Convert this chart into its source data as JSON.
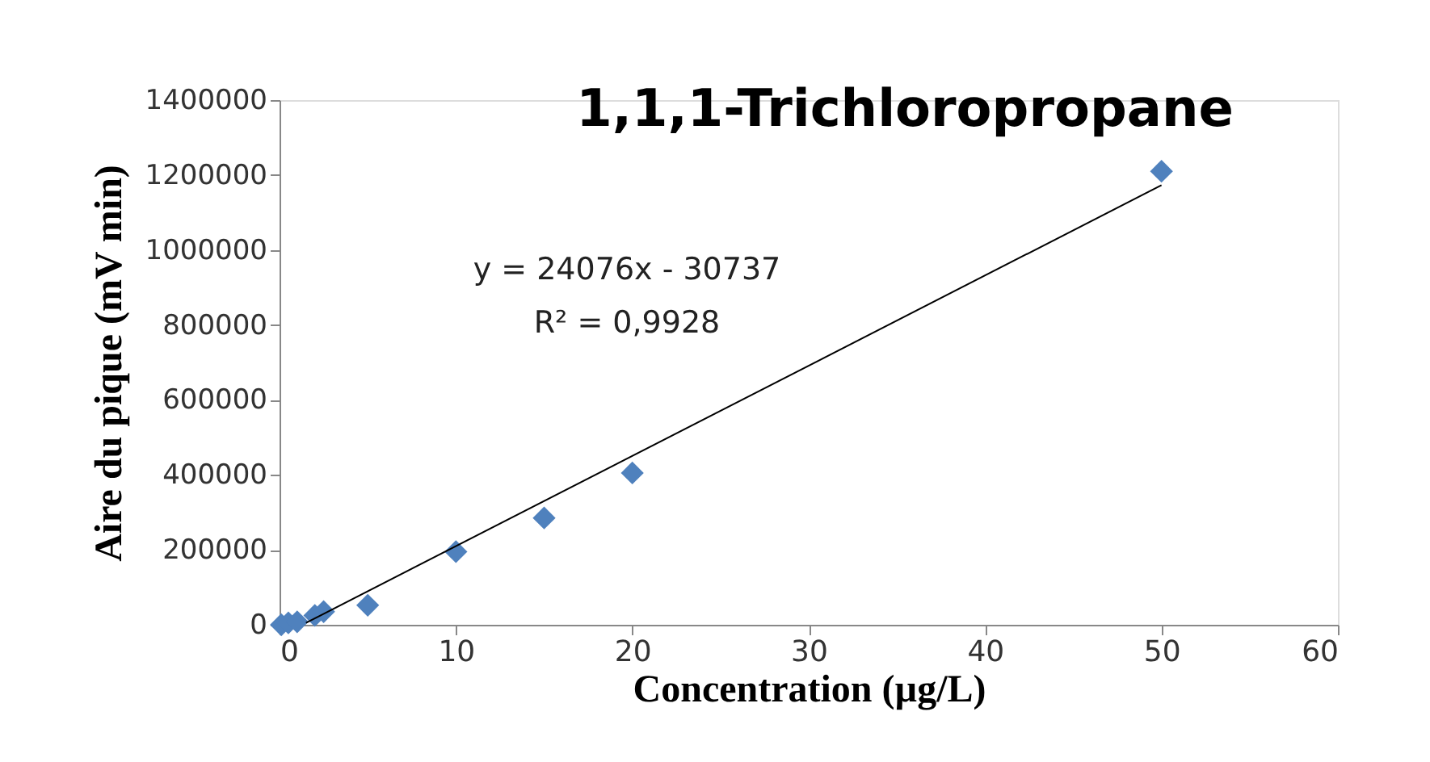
{
  "chart_data": {
    "type": "scatter",
    "title": "1,1,1-Trichloropropane",
    "xlabel": "Concentration (µg/L)",
    "ylabel": "Aire du pique (mV min)",
    "annotations": [
      "y = 24076x - 30737",
      "R² = 0,9928"
    ],
    "series": [
      {
        "color": "#4f81bd",
        "marker": "diamond",
        "x": [
          0.1,
          0.5,
          1,
          2,
          2.5,
          5,
          10,
          15,
          20,
          50
        ],
        "values": [
          0,
          5000,
          8000,
          25000,
          35000,
          52000,
          195000,
          285000,
          405000,
          1210000
        ]
      },
      {
        "type": "line",
        "color": "#000000",
        "line_style": "solid",
        "x": [
          1.5,
          50
        ],
        "values": [
          5000,
          1173000
        ]
      }
    ],
    "xlim": [
      0,
      60
    ],
    "xticks": [
      0,
      10,
      20,
      30,
      40,
      50,
      60
    ],
    "ylim": [
      0,
      1400000
    ],
    "yticks": [
      0,
      200000,
      400000,
      600000,
      800000,
      1000000,
      1200000,
      1400000
    ],
    "grid": false
  }
}
